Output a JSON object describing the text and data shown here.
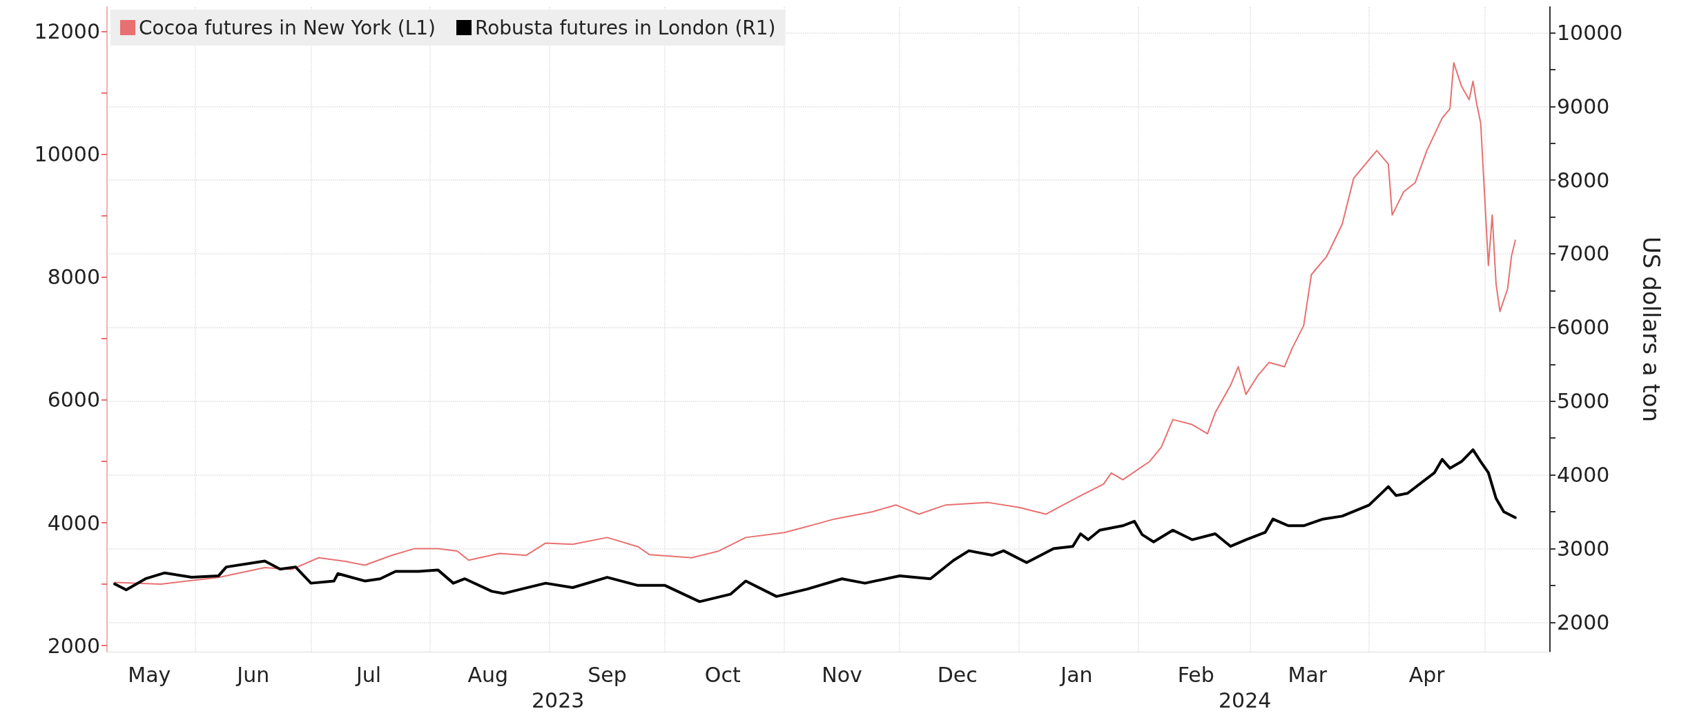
{
  "chart_data": {
    "type": "line",
    "y2label": "US dollars a ton",
    "annotations": [
      "2023",
      "2024"
    ],
    "xlim": [
      "2023-05-09",
      "2024-05-18"
    ],
    "xticks": [
      {
        "value": "2023-05-20",
        "label": "May"
      },
      {
        "value": "2023-06-01",
        "label": null
      },
      {
        "value": "2023-06-16",
        "label": "Jun"
      },
      {
        "value": "2023-07-01",
        "label": null
      },
      {
        "value": "2023-07-16",
        "label": "Jul"
      },
      {
        "value": "2023-08-01",
        "label": null
      },
      {
        "value": "2023-08-16",
        "label": "Aug"
      },
      {
        "value": "2023-09-01",
        "label": null
      },
      {
        "value": "2023-09-16",
        "label": "Sep"
      },
      {
        "value": "2023-10-01",
        "label": null
      },
      {
        "value": "2023-10-16",
        "label": "Oct"
      },
      {
        "value": "2023-11-01",
        "label": null
      },
      {
        "value": "2023-11-16",
        "label": "Nov"
      },
      {
        "value": "2023-12-01",
        "label": null
      },
      {
        "value": "2023-12-16",
        "label": "Dec"
      },
      {
        "value": "2024-01-01",
        "label": null
      },
      {
        "value": "2024-01-16",
        "label": "Jan"
      },
      {
        "value": "2024-02-01",
        "label": null
      },
      {
        "value": "2024-02-16",
        "label": "Feb"
      },
      {
        "value": "2024-03-01",
        "label": null
      },
      {
        "value": "2024-03-16",
        "label": "Mar"
      },
      {
        "value": "2024-04-01",
        "label": null
      },
      {
        "value": "2024-04-16",
        "label": "Apr"
      },
      {
        "value": "2024-05-01",
        "label": null
      }
    ],
    "ylim": [
      1900,
      12400
    ],
    "yticks": [
      2000,
      {
        "value": 3000,
        "label": null
      },
      4000,
      {
        "value": 5000,
        "label": null
      },
      6000,
      {
        "value": 7000,
        "label": null
      },
      8000,
      {
        "value": 9000,
        "label": null
      },
      10000,
      {
        "value": 11000,
        "label": null
      },
      12000
    ],
    "y2lim": [
      1600,
      10350
    ],
    "y2ticks": [
      2000,
      {
        "value": 2500,
        "label": null
      },
      3000,
      {
        "value": 3500,
        "label": null
      },
      4000,
      {
        "value": 4500,
        "label": null
      },
      5000,
      {
        "value": 5500,
        "label": null
      },
      6000,
      {
        "value": 6500,
        "label": null
      },
      7000,
      {
        "value": 7500,
        "label": null
      },
      8000,
      {
        "value": 8500,
        "label": null
      },
      9000,
      {
        "value": 9500,
        "label": null
      },
      10000
    ],
    "grid": true,
    "legend": "top left",
    "marker": "none",
    "series": [
      {
        "name": "Cocoa futures in New York (L1)",
        "color": "#e87070",
        "x": [
          "2023-05-11",
          "2023-05-23",
          "2023-06-07",
          "2023-06-19",
          "2023-06-26",
          "2023-07-03",
          "2023-07-10",
          "2023-07-15",
          "2023-07-22",
          "2023-07-28",
          "2023-08-03",
          "2023-08-08",
          "2023-08-11",
          "2023-08-19",
          "2023-08-26",
          "2023-08-31",
          "2023-09-07",
          "2023-09-16",
          "2023-09-24",
          "2023-09-27",
          "2023-10-08",
          "2023-10-15",
          "2023-10-22",
          "2023-11-01",
          "2023-11-10",
          "2023-11-14",
          "2023-11-24",
          "2023-11-30",
          "2023-12-06",
          "2023-12-13",
          "2023-12-24",
          "2024-01-01",
          "2024-01-08",
          "2024-01-17",
          "2024-01-23",
          "2024-01-25",
          "2024-01-28",
          "2024-02-04",
          "2024-02-07",
          "2024-02-10",
          "2024-02-15",
          "2024-02-19",
          "2024-02-21",
          "2024-02-25",
          "2024-02-27",
          "2024-02-29",
          "2024-03-03",
          "2024-03-06",
          "2024-03-10",
          "2024-03-12",
          "2024-03-15",
          "2024-03-17",
          "2024-03-21",
          "2024-03-25",
          "2024-03-28",
          "2024-04-01",
          "2024-04-03",
          "2024-04-06",
          "2024-04-07",
          "2024-04-10",
          "2024-04-13",
          "2024-04-16",
          "2024-04-20",
          "2024-04-22",
          "2024-04-23",
          "2024-04-25",
          "2024-04-27",
          "2024-04-28",
          "2024-04-29",
          "2024-04-30",
          "2024-05-02",
          "2024-05-03",
          "2024-05-04",
          "2024-05-05",
          "2024-05-07",
          "2024-05-08",
          "2024-05-09"
        ],
        "values": [
          3030,
          3000,
          3110,
          3270,
          3240,
          3430,
          3370,
          3310,
          3470,
          3580,
          3580,
          3540,
          3390,
          3500,
          3470,
          3670,
          3650,
          3760,
          3610,
          3480,
          3430,
          3540,
          3760,
          3840,
          3990,
          4060,
          4180,
          4290,
          4140,
          4290,
          4330,
          4250,
          4140,
          4440,
          4630,
          4810,
          4700,
          5000,
          5230,
          5680,
          5600,
          5450,
          5790,
          6240,
          6540,
          6090,
          6390,
          6610,
          6540,
          6840,
          7210,
          8040,
          8340,
          8860,
          9610,
          9910,
          10060,
          9840,
          9010,
          9390,
          9540,
          10060,
          10590,
          10740,
          11490,
          11110,
          10890,
          11190,
          10810,
          10510,
          8190,
          9010,
          7890,
          7440,
          7810,
          8340,
          8600
        ]
      },
      {
        "name": "Robusta futures in London (R1)",
        "color": "#000000",
        "axis": "y2",
        "x": [
          "2023-05-11",
          "2023-05-14",
          "2023-05-19",
          "2023-05-24",
          "2023-05-31",
          "2023-06-07",
          "2023-06-09",
          "2023-06-19",
          "2023-06-23",
          "2023-06-27",
          "2023-07-01",
          "2023-07-07",
          "2023-07-08",
          "2023-07-15",
          "2023-07-19",
          "2023-07-23",
          "2023-07-29",
          "2023-08-03",
          "2023-08-07",
          "2023-08-10",
          "2023-08-17",
          "2023-08-20",
          "2023-08-31",
          "2023-09-07",
          "2023-09-16",
          "2023-09-24",
          "2023-10-01",
          "2023-10-10",
          "2023-10-18",
          "2023-10-22",
          "2023-10-30",
          "2023-11-07",
          "2023-11-16",
          "2023-11-22",
          "2023-12-01",
          "2023-12-09",
          "2023-12-15",
          "2023-12-19",
          "2023-12-25",
          "2023-12-28",
          "2024-01-03",
          "2024-01-10",
          "2024-01-15",
          "2024-01-17",
          "2024-01-19",
          "2024-01-22",
          "2024-01-28",
          "2024-01-31",
          "2024-02-02",
          "2024-02-05",
          "2024-02-10",
          "2024-02-15",
          "2024-02-21",
          "2024-02-25",
          "2024-02-29",
          "2024-03-05",
          "2024-03-07",
          "2024-03-11",
          "2024-03-15",
          "2024-03-20",
          "2024-03-25",
          "2024-04-01",
          "2024-04-06",
          "2024-04-08",
          "2024-04-11",
          "2024-04-18",
          "2024-04-20",
          "2024-04-22",
          "2024-04-25",
          "2024-04-28",
          "2024-04-30",
          "2024-05-02",
          "2024-05-04",
          "2024-05-06",
          "2024-05-09"
        ],
        "values": [
          2520,
          2440,
          2590,
          2670,
          2610,
          2630,
          2750,
          2830,
          2720,
          2750,
          2530,
          2560,
          2660,
          2560,
          2590,
          2690,
          2690,
          2710,
          2530,
          2590,
          2420,
          2390,
          2530,
          2470,
          2610,
          2500,
          2500,
          2280,
          2380,
          2560,
          2350,
          2450,
          2590,
          2530,
          2630,
          2590,
          2840,
          2970,
          2910,
          2970,
          2810,
          3000,
          3030,
          3200,
          3120,
          3250,
          3310,
          3370,
          3190,
          3090,
          3250,
          3120,
          3200,
          3030,
          3120,
          3220,
          3400,
          3310,
          3310,
          3400,
          3440,
          3590,
          3840,
          3720,
          3750,
          4030,
          4210,
          4090,
          4180,
          4340,
          4180,
          4030,
          3680,
          3500,
          3420
        ]
      }
    ]
  }
}
